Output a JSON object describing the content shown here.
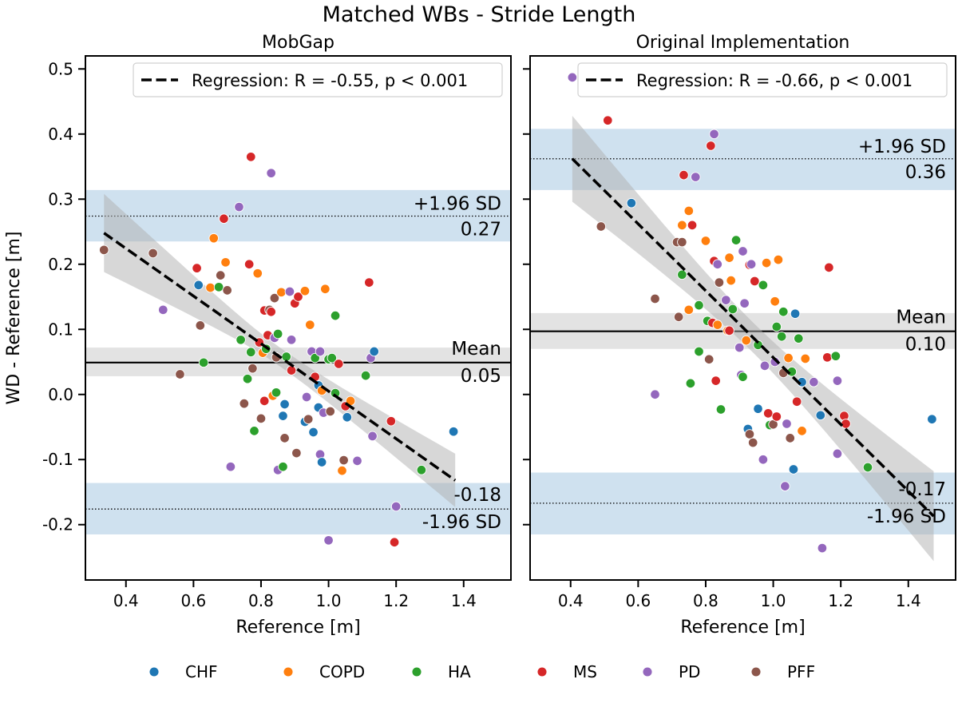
{
  "title": "Matched WBs - Stride Length",
  "colors": {
    "CHF": "#1f77b4",
    "COPD": "#ff7f0e",
    "HA": "#2ca02c",
    "MS": "#d62728",
    "PD": "#9467bd",
    "PFF": "#8c564b"
  },
  "legend": {
    "placement": "bottom-center",
    "items": [
      "CHF",
      "COPD",
      "HA",
      "MS",
      "PD",
      "PFF"
    ]
  },
  "chart_data": [
    {
      "type": "scatter",
      "title": "MobGap",
      "xlabel": "Reference [m]",
      "ylabel": "WD - Reference [m]",
      "xlim": [
        0.28,
        1.54
      ],
      "ylim": [
        -0.285,
        0.52
      ],
      "xticks": [
        0.4,
        0.6,
        0.8,
        1.0,
        1.2,
        1.4
      ],
      "yticks": [
        -0.2,
        -0.1,
        0.0,
        0.1,
        0.2,
        0.3,
        0.4,
        0.5
      ],
      "legend_text": "Regression: R = -0.55, p < 0.001",
      "mean": {
        "value": 0.049,
        "band": [
          0.028,
          0.072
        ],
        "label": "Mean",
        "value_label": "0.05"
      },
      "upper_loa": {
        "value": 0.274,
        "band": [
          0.235,
          0.314
        ],
        "label": "+1.96 SD",
        "value_label": "0.27"
      },
      "lower_loa": {
        "value": -0.176,
        "band": [
          -0.215,
          -0.136
        ],
        "label": "-1.96 SD",
        "value_label": "-0.18"
      },
      "regression": {
        "x": [
          0.335,
          1.375
        ],
        "y": [
          0.248,
          -0.132
        ],
        "ci_upper": [
          0.312,
          -0.094
        ],
        "ci_lower": [
          0.192,
          -0.176
        ]
      },
      "points": [
        {
          "x": 0.335,
          "y": 0.222,
          "g": "PFF"
        },
        {
          "x": 0.48,
          "y": 0.217,
          "g": "PFF"
        },
        {
          "x": 0.51,
          "y": 0.13,
          "g": "PD"
        },
        {
          "x": 0.56,
          "y": 0.031,
          "g": "PFF"
        },
        {
          "x": 0.61,
          "y": 0.194,
          "g": "MS"
        },
        {
          "x": 0.615,
          "y": 0.168,
          "g": "CHF"
        },
        {
          "x": 0.62,
          "y": 0.106,
          "g": "PFF"
        },
        {
          "x": 0.63,
          "y": 0.049,
          "g": "HA"
        },
        {
          "x": 0.65,
          "y": 0.164,
          "g": "COPD"
        },
        {
          "x": 0.66,
          "y": 0.24,
          "g": "COPD"
        },
        {
          "x": 0.675,
          "y": 0.165,
          "g": "HA"
        },
        {
          "x": 0.68,
          "y": 0.183,
          "g": "PFF"
        },
        {
          "x": 0.69,
          "y": 0.27,
          "g": "MS"
        },
        {
          "x": 0.695,
          "y": 0.203,
          "g": "COPD"
        },
        {
          "x": 0.7,
          "y": 0.16,
          "g": "PFF"
        },
        {
          "x": 0.71,
          "y": -0.111,
          "g": "PD"
        },
        {
          "x": 0.735,
          "y": 0.288,
          "g": "PD"
        },
        {
          "x": 0.74,
          "y": 0.084,
          "g": "HA"
        },
        {
          "x": 0.75,
          "y": -0.014,
          "g": "PFF"
        },
        {
          "x": 0.76,
          "y": 0.024,
          "g": "HA"
        },
        {
          "x": 0.765,
          "y": 0.2,
          "g": "MS"
        },
        {
          "x": 0.77,
          "y": 0.365,
          "g": "MS"
        },
        {
          "x": 0.77,
          "y": 0.065,
          "g": "HA"
        },
        {
          "x": 0.775,
          "y": 0.04,
          "g": "PFF"
        },
        {
          "x": 0.78,
          "y": -0.056,
          "g": "HA"
        },
        {
          "x": 0.79,
          "y": 0.186,
          "g": "COPD"
        },
        {
          "x": 0.795,
          "y": 0.08,
          "g": "MS"
        },
        {
          "x": 0.8,
          "y": -0.037,
          "g": "PFF"
        },
        {
          "x": 0.805,
          "y": 0.064,
          "g": "COPD"
        },
        {
          "x": 0.81,
          "y": 0.129,
          "g": "MS"
        },
        {
          "x": 0.81,
          "y": -0.01,
          "g": "MS"
        },
        {
          "x": 0.815,
          "y": 0.07,
          "g": "HA"
        },
        {
          "x": 0.82,
          "y": 0.091,
          "g": "MS"
        },
        {
          "x": 0.825,
          "y": 0.13,
          "g": "PFF"
        },
        {
          "x": 0.83,
          "y": 0.34,
          "g": "PD"
        },
        {
          "x": 0.83,
          "y": 0.127,
          "g": "MS"
        },
        {
          "x": 0.835,
          "y": -0.002,
          "g": "COPD"
        },
        {
          "x": 0.84,
          "y": 0.148,
          "g": "PFF"
        },
        {
          "x": 0.84,
          "y": 0.087,
          "g": "PD"
        },
        {
          "x": 0.845,
          "y": 0.057,
          "g": "PFF"
        },
        {
          "x": 0.845,
          "y": 0.003,
          "g": "HA"
        },
        {
          "x": 0.85,
          "y": 0.093,
          "g": "HA"
        },
        {
          "x": 0.85,
          "y": -0.116,
          "g": "PD"
        },
        {
          "x": 0.86,
          "y": 0.157,
          "g": "COPD"
        },
        {
          "x": 0.865,
          "y": -0.033,
          "g": "CHF"
        },
        {
          "x": 0.865,
          "y": -0.111,
          "g": "HA"
        },
        {
          "x": 0.87,
          "y": -0.067,
          "g": "PFF"
        },
        {
          "x": 0.87,
          "y": -0.015,
          "g": "CHF"
        },
        {
          "x": 0.875,
          "y": 0.058,
          "g": "HA"
        },
        {
          "x": 0.885,
          "y": 0.158,
          "g": "PD"
        },
        {
          "x": 0.89,
          "y": 0.037,
          "g": "MS"
        },
        {
          "x": 0.89,
          "y": 0.084,
          "g": "PD"
        },
        {
          "x": 0.9,
          "y": 0.14,
          "g": "MS"
        },
        {
          "x": 0.905,
          "y": -0.09,
          "g": "PFF"
        },
        {
          "x": 0.91,
          "y": 0.15,
          "g": "MS"
        },
        {
          "x": 0.93,
          "y": 0.159,
          "g": "COPD"
        },
        {
          "x": 0.93,
          "y": -0.042,
          "g": "CHF"
        },
        {
          "x": 0.935,
          "y": -0.004,
          "g": "PD"
        },
        {
          "x": 0.94,
          "y": -0.038,
          "g": "PFF"
        },
        {
          "x": 0.945,
          "y": 0.107,
          "g": "COPD"
        },
        {
          "x": 0.95,
          "y": 0.066,
          "g": "PD"
        },
        {
          "x": 0.955,
          "y": -0.058,
          "g": "CHF"
        },
        {
          "x": 0.96,
          "y": 0.056,
          "g": "HA"
        },
        {
          "x": 0.96,
          "y": 0.027,
          "g": "MS"
        },
        {
          "x": 0.97,
          "y": 0.014,
          "g": "CHF"
        },
        {
          "x": 0.97,
          "y": -0.02,
          "g": "CHF"
        },
        {
          "x": 0.975,
          "y": -0.092,
          "g": "PD"
        },
        {
          "x": 0.975,
          "y": 0.066,
          "g": "PD"
        },
        {
          "x": 0.98,
          "y": -0.104,
          "g": "CHF"
        },
        {
          "x": 0.98,
          "y": 0.006,
          "g": "COPD"
        },
        {
          "x": 0.985,
          "y": -0.028,
          "g": "PD"
        },
        {
          "x": 0.99,
          "y": 0.162,
          "g": "COPD"
        },
        {
          "x": 1.0,
          "y": 0.054,
          "g": "HA"
        },
        {
          "x": 1.0,
          "y": -0.224,
          "g": "PD"
        },
        {
          "x": 1.005,
          "y": -0.026,
          "g": "PFF"
        },
        {
          "x": 1.01,
          "y": 0.056,
          "g": "HA"
        },
        {
          "x": 1.02,
          "y": 0.002,
          "g": "HA"
        },
        {
          "x": 1.02,
          "y": 0.121,
          "g": "HA"
        },
        {
          "x": 1.03,
          "y": 0.047,
          "g": "MS"
        },
        {
          "x": 1.04,
          "y": -0.117,
          "g": "COPD"
        },
        {
          "x": 1.045,
          "y": -0.101,
          "g": "PFF"
        },
        {
          "x": 1.05,
          "y": -0.018,
          "g": "MS"
        },
        {
          "x": 1.055,
          "y": -0.035,
          "g": "CHF"
        },
        {
          "x": 1.065,
          "y": -0.01,
          "g": "COPD"
        },
        {
          "x": 1.085,
          "y": -0.102,
          "g": "PD"
        },
        {
          "x": 1.11,
          "y": 0.029,
          "g": "HA"
        },
        {
          "x": 1.12,
          "y": 0.172,
          "g": "MS"
        },
        {
          "x": 1.125,
          "y": 0.056,
          "g": "PD"
        },
        {
          "x": 1.13,
          "y": -0.064,
          "g": "PD"
        },
        {
          "x": 1.135,
          "y": 0.066,
          "g": "CHF"
        },
        {
          "x": 1.185,
          "y": -0.041,
          "g": "MS"
        },
        {
          "x": 1.195,
          "y": -0.227,
          "g": "MS"
        },
        {
          "x": 1.2,
          "y": -0.172,
          "g": "PD"
        },
        {
          "x": 1.275,
          "y": -0.116,
          "g": "HA"
        },
        {
          "x": 1.37,
          "y": -0.057,
          "g": "CHF"
        }
      ]
    },
    {
      "type": "scatter",
      "title": "Original Implementation",
      "xlabel": "Reference [m]",
      "ylabel": "",
      "xlim": [
        0.28,
        1.54
      ],
      "ylim": [
        -0.285,
        0.52
      ],
      "xticks": [
        0.4,
        0.6,
        0.8,
        1.0,
        1.2,
        1.4
      ],
      "yticks": [
        -0.2,
        -0.1,
        0.0,
        0.1,
        0.2,
        0.3,
        0.4,
        0.5
      ],
      "legend_text": "Regression: R = -0.66, p < 0.001",
      "mean": {
        "value": 0.097,
        "band": [
          0.07,
          0.125
        ],
        "label": "Mean",
        "value_label": "0.10"
      },
      "upper_loa": {
        "value": 0.362,
        "band": [
          0.314,
          0.408
        ],
        "label": "+1.96 SD",
        "value_label": "0.36"
      },
      "lower_loa": {
        "value": -0.167,
        "band": [
          -0.215,
          -0.12
        ],
        "label": "-1.96 SD",
        "value_label": "-0.17"
      },
      "regression": {
        "x": [
          0.405,
          1.475
        ],
        "y": [
          0.362,
          -0.187
        ],
        "ci_upper": [
          0.422,
          -0.11
        ],
        "ci_lower": [
          0.29,
          -0.248
        ]
      },
      "points": [
        {
          "x": 0.405,
          "y": 0.487,
          "g": "PD"
        },
        {
          "x": 0.49,
          "y": 0.258,
          "g": "PFF"
        },
        {
          "x": 0.51,
          "y": 0.421,
          "g": "MS"
        },
        {
          "x": 0.58,
          "y": 0.294,
          "g": "CHF"
        },
        {
          "x": 0.65,
          "y": 0.147,
          "g": "PFF"
        },
        {
          "x": 0.65,
          "y": 0.0,
          "g": "PD"
        },
        {
          "x": 0.715,
          "y": 0.234,
          "g": "PFF"
        },
        {
          "x": 0.72,
          "y": 0.119,
          "g": "PFF"
        },
        {
          "x": 0.73,
          "y": 0.26,
          "g": "COPD"
        },
        {
          "x": 0.73,
          "y": 0.184,
          "g": "HA"
        },
        {
          "x": 0.73,
          "y": 0.234,
          "g": "PFF"
        },
        {
          "x": 0.735,
          "y": 0.337,
          "g": "MS"
        },
        {
          "x": 0.75,
          "y": 0.282,
          "g": "COPD"
        },
        {
          "x": 0.75,
          "y": 0.13,
          "g": "COPD"
        },
        {
          "x": 0.755,
          "y": 0.017,
          "g": "HA"
        },
        {
          "x": 0.76,
          "y": 0.26,
          "g": "MS"
        },
        {
          "x": 0.77,
          "y": 0.334,
          "g": "PD"
        },
        {
          "x": 0.78,
          "y": 0.066,
          "g": "HA"
        },
        {
          "x": 0.78,
          "y": 0.137,
          "g": "HA"
        },
        {
          "x": 0.8,
          "y": 0.236,
          "g": "COPD"
        },
        {
          "x": 0.805,
          "y": 0.113,
          "g": "HA"
        },
        {
          "x": 0.81,
          "y": 0.054,
          "g": "PFF"
        },
        {
          "x": 0.815,
          "y": 0.382,
          "g": "MS"
        },
        {
          "x": 0.82,
          "y": 0.11,
          "g": "MS"
        },
        {
          "x": 0.825,
          "y": 0.205,
          "g": "MS"
        },
        {
          "x": 0.825,
          "y": 0.4,
          "g": "PD"
        },
        {
          "x": 0.83,
          "y": 0.021,
          "g": "MS"
        },
        {
          "x": 0.835,
          "y": 0.107,
          "g": "COPD"
        },
        {
          "x": 0.835,
          "y": 0.2,
          "g": "PD"
        },
        {
          "x": 0.84,
          "y": 0.172,
          "g": "PFF"
        },
        {
          "x": 0.845,
          "y": -0.023,
          "g": "HA"
        },
        {
          "x": 0.86,
          "y": 0.145,
          "g": "PD"
        },
        {
          "x": 0.865,
          "y": 0.098,
          "g": "COPD"
        },
        {
          "x": 0.87,
          "y": 0.21,
          "g": "COPD"
        },
        {
          "x": 0.87,
          "y": 0.098,
          "g": "MS"
        },
        {
          "x": 0.875,
          "y": 0.175,
          "g": "COPD"
        },
        {
          "x": 0.88,
          "y": 0.131,
          "g": "HA"
        },
        {
          "x": 0.89,
          "y": 0.237,
          "g": "HA"
        },
        {
          "x": 0.9,
          "y": 0.072,
          "g": "PD"
        },
        {
          "x": 0.905,
          "y": 0.03,
          "g": "PD"
        },
        {
          "x": 0.91,
          "y": 0.22,
          "g": "PD"
        },
        {
          "x": 0.91,
          "y": 0.027,
          "g": "HA"
        },
        {
          "x": 0.915,
          "y": 0.14,
          "g": "PD"
        },
        {
          "x": 0.92,
          "y": 0.083,
          "g": "COPD"
        },
        {
          "x": 0.925,
          "y": -0.053,
          "g": "CHF"
        },
        {
          "x": 0.93,
          "y": -0.061,
          "g": "PFF"
        },
        {
          "x": 0.93,
          "y": 0.199,
          "g": "MS"
        },
        {
          "x": 0.935,
          "y": 0.2,
          "g": "PD"
        },
        {
          "x": 0.94,
          "y": -0.074,
          "g": "PFF"
        },
        {
          "x": 0.945,
          "y": 0.174,
          "g": "MS"
        },
        {
          "x": 0.955,
          "y": 0.076,
          "g": "HA"
        },
        {
          "x": 0.955,
          "y": -0.022,
          "g": "CHF"
        },
        {
          "x": 0.97,
          "y": -0.1,
          "g": "PD"
        },
        {
          "x": 0.97,
          "y": 0.168,
          "g": "HA"
        },
        {
          "x": 0.975,
          "y": 0.044,
          "g": "PD"
        },
        {
          "x": 0.98,
          "y": 0.202,
          "g": "COPD"
        },
        {
          "x": 0.985,
          "y": -0.029,
          "g": "MS"
        },
        {
          "x": 0.99,
          "y": -0.047,
          "g": "HA"
        },
        {
          "x": 1.0,
          "y": -0.046,
          "g": "PFF"
        },
        {
          "x": 1.005,
          "y": 0.143,
          "g": "COPD"
        },
        {
          "x": 1.005,
          "y": 0.05,
          "g": "PD"
        },
        {
          "x": 1.01,
          "y": 0.104,
          "g": "HA"
        },
        {
          "x": 1.01,
          "y": -0.034,
          "g": "MS"
        },
        {
          "x": 1.015,
          "y": 0.207,
          "g": "COPD"
        },
        {
          "x": 1.025,
          "y": 0.089,
          "g": "HA"
        },
        {
          "x": 1.03,
          "y": 0.033,
          "g": "PFF"
        },
        {
          "x": 1.03,
          "y": 0.127,
          "g": "HA"
        },
        {
          "x": 1.035,
          "y": -0.141,
          "g": "PD"
        },
        {
          "x": 1.04,
          "y": -0.045,
          "g": "PD"
        },
        {
          "x": 1.045,
          "y": 0.056,
          "g": "COPD"
        },
        {
          "x": 1.05,
          "y": -0.067,
          "g": "PFF"
        },
        {
          "x": 1.055,
          "y": 0.035,
          "g": "HA"
        },
        {
          "x": 1.06,
          "y": -0.115,
          "g": "CHF"
        },
        {
          "x": 1.065,
          "y": 0.124,
          "g": "CHF"
        },
        {
          "x": 1.07,
          "y": -0.011,
          "g": "MS"
        },
        {
          "x": 1.075,
          "y": 0.086,
          "g": "HA"
        },
        {
          "x": 1.085,
          "y": -0.056,
          "g": "COPD"
        },
        {
          "x": 1.085,
          "y": 0.019,
          "g": "CHF"
        },
        {
          "x": 1.095,
          "y": 0.055,
          "g": "COPD"
        },
        {
          "x": 1.12,
          "y": 0.019,
          "g": "PD"
        },
        {
          "x": 1.14,
          "y": -0.032,
          "g": "CHF"
        },
        {
          "x": 1.145,
          "y": -0.236,
          "g": "PD"
        },
        {
          "x": 1.16,
          "y": 0.057,
          "g": "MS"
        },
        {
          "x": 1.165,
          "y": 0.195,
          "g": "MS"
        },
        {
          "x": 1.185,
          "y": 0.059,
          "g": "HA"
        },
        {
          "x": 1.19,
          "y": -0.091,
          "g": "PD"
        },
        {
          "x": 1.19,
          "y": 0.021,
          "g": "PD"
        },
        {
          "x": 1.21,
          "y": -0.033,
          "g": "MS"
        },
        {
          "x": 1.215,
          "y": -0.045,
          "g": "MS"
        },
        {
          "x": 1.28,
          "y": -0.112,
          "g": "HA"
        },
        {
          "x": 1.47,
          "y": -0.038,
          "g": "CHF"
        }
      ]
    }
  ]
}
